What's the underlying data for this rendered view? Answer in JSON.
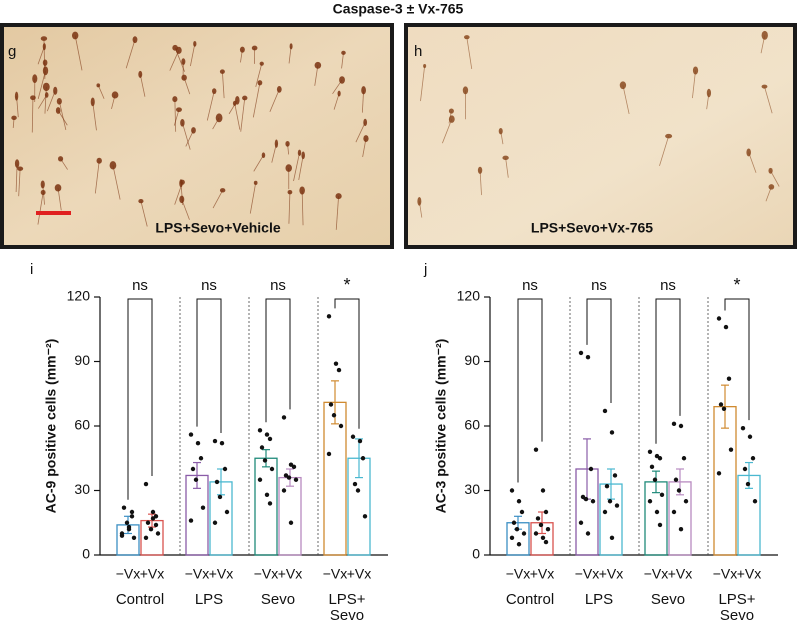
{
  "figure_title": "Caspase-3 ± Vx-765",
  "images": [
    {
      "panel": "g",
      "caption": "LPS+Sevo+Vehicle"
    },
    {
      "panel": "h",
      "caption": "LPS+Sevo+Vx-765"
    }
  ],
  "chart_data": [
    {
      "type": "bar",
      "panel": "i",
      "ylabel": "AC-9 positive cells (mm⁻²)",
      "ylim": [
        0,
        120
      ],
      "yticks": [
        0,
        30,
        60,
        90,
        120
      ],
      "groups": [
        {
          "name": [
            "Control"
          ],
          "significance": "ns",
          "bars": [
            {
              "label": "−Vx",
              "color": "#3b8fc4",
              "value": 14,
              "error": 4,
              "points": [
                9,
                13,
                20,
                22,
                15,
                8,
                10,
                12,
                18
              ]
            },
            {
              "label": "+Vx",
              "color": "#d9534f",
              "value": 16,
              "error": 3,
              "points": [
                33,
                20,
                18,
                15,
                12,
                10,
                8,
                17,
                14
              ]
            }
          ]
        },
        {
          "name": [
            "LPS"
          ],
          "significance": "ns",
          "bars": [
            {
              "label": "−Vx",
              "color": "#8a5ca8",
              "value": 37,
              "error": 6,
              "points": [
                56,
                52,
                45,
                40,
                35,
                22,
                16
              ]
            },
            {
              "label": "+Vx",
              "color": "#4ab8d0",
              "value": 34,
              "error": 6,
              "points": [
                53,
                52,
                40,
                34,
                27,
                20,
                15
              ]
            }
          ]
        },
        {
          "name": [
            "Sevo"
          ],
          "significance": "ns",
          "bars": [
            {
              "label": "−Vx",
              "color": "#1f8a7a",
              "value": 45,
              "error": 4,
              "points": [
                58,
                56,
                54,
                50,
                44,
                40,
                35,
                28,
                24
              ]
            },
            {
              "label": "+Vx",
              "color": "#b88ac0",
              "value": 36,
              "error": 4,
              "points": [
                64,
                42,
                41,
                37,
                36,
                35,
                30,
                15
              ]
            }
          ]
        },
        {
          "name": [
            "LPS+",
            "Sevo"
          ],
          "significance": "*",
          "bars": [
            {
              "label": "−Vx",
              "color": "#d08a30",
              "value": 71,
              "error": 10,
              "points": [
                111,
                89,
                86,
                70,
                65,
                60,
                47
              ]
            },
            {
              "label": "+Vx",
              "color": "#4ab8d0",
              "value": 45,
              "error": 9,
              "points": [
                55,
                53,
                45,
                33,
                30,
                18
              ]
            }
          ]
        }
      ]
    },
    {
      "type": "bar",
      "panel": "j",
      "ylabel": "AC-3 positive cells (mm⁻²)",
      "ylim": [
        0,
        120
      ],
      "yticks": [
        0,
        30,
        60,
        90,
        120
      ],
      "groups": [
        {
          "name": [
            "Control"
          ],
          "significance": "ns",
          "bars": [
            {
              "label": "−Vx",
              "color": "#3b8fc4",
              "value": 15,
              "error": 3,
              "points": [
                30,
                25,
                20,
                15,
                12,
                10,
                8,
                5
              ]
            },
            {
              "label": "+Vx",
              "color": "#d9534f",
              "value": 15,
              "error": 5,
              "points": [
                49,
                30,
                20,
                17,
                14,
                12,
                10,
                8,
                6
              ]
            }
          ]
        },
        {
          "name": [
            "LPS"
          ],
          "significance": "ns",
          "bars": [
            {
              "label": "−Vx",
              "color": "#8a5ca8",
              "value": 40,
              "error": 14,
              "points": [
                94,
                92,
                40,
                27,
                26,
                25,
                15,
                10
              ]
            },
            {
              "label": "+Vx",
              "color": "#4ab8d0",
              "value": 33,
              "error": 7,
              "points": [
                67,
                57,
                37,
                32,
                25,
                23,
                20,
                8
              ]
            }
          ]
        },
        {
          "name": [
            "Sevo"
          ],
          "significance": "ns",
          "bars": [
            {
              "label": "−Vx",
              "color": "#1f8a7a",
              "value": 34,
              "error": 5,
              "points": [
                48,
                46,
                45,
                41,
                35,
                28,
                25,
                20,
                14
              ]
            },
            {
              "label": "+Vx",
              "color": "#b88ac0",
              "value": 34,
              "error": 6,
              "points": [
                61,
                60,
                45,
                35,
                30,
                25,
                20,
                12
              ]
            }
          ]
        },
        {
          "name": [
            "LPS+",
            "Sevo"
          ],
          "significance": "*",
          "bars": [
            {
              "label": "−Vx",
              "color": "#d08a30",
              "value": 69,
              "error": 10,
              "points": [
                110,
                106,
                82,
                70,
                68,
                49,
                38
              ]
            },
            {
              "label": "+Vx",
              "color": "#4ab8d0",
              "value": 37,
              "error": 6,
              "points": [
                59,
                55,
                45,
                40,
                33,
                25
              ]
            }
          ]
        }
      ]
    }
  ]
}
